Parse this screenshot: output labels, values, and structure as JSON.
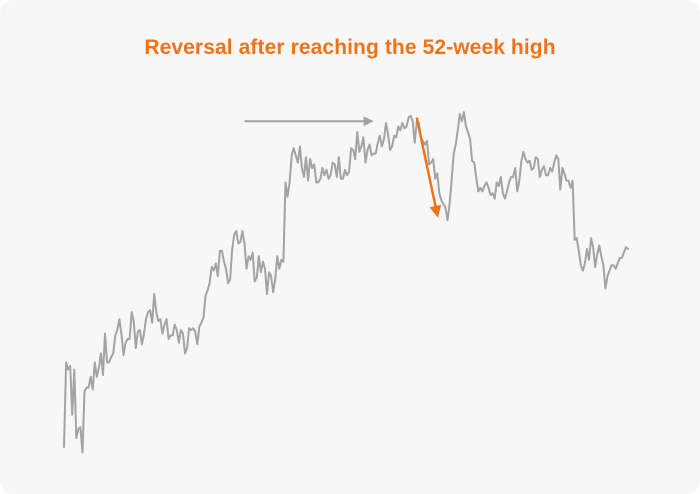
{
  "title": "Reversal after reaching the 52-week high",
  "colors": {
    "background": "#f7f7f7",
    "title": "#f07319",
    "price_line": "#a3a3a3",
    "highlight_arrow": "#f07319",
    "reference_arrow": "#a3a3a3"
  },
  "chart_data": {
    "type": "line",
    "title": "Reversal after reaching the 52-week high",
    "xlabel": "",
    "ylabel": "",
    "grid": false,
    "axes_visible": false,
    "legend": "none",
    "x": [
      0,
      1,
      2,
      3,
      4,
      5,
      6,
      7,
      8,
      9,
      10,
      11,
      12,
      13,
      14,
      15,
      16,
      17,
      18,
      19,
      20,
      21,
      22,
      23,
      24,
      25,
      26,
      27,
      28,
      29,
      30,
      31,
      32,
      33,
      34,
      35,
      36,
      37,
      38,
      39,
      40,
      41,
      42,
      43,
      44,
      45,
      46,
      47,
      48,
      49,
      50,
      51,
      52,
      53,
      54,
      55,
      56,
      57,
      58,
      59,
      60,
      61,
      62,
      63,
      64,
      65,
      66,
      67,
      68,
      69,
      70,
      71,
      72,
      73,
      74,
      75,
      76,
      77,
      78,
      79,
      80,
      81,
      82,
      83,
      84,
      85,
      86,
      87,
      88,
      89,
      90,
      91,
      92,
      93,
      94,
      95,
      96,
      97,
      98,
      99,
      100,
      101,
      102,
      103,
      104,
      105,
      106,
      107,
      108,
      109,
      110,
      111,
      112,
      113,
      114,
      115,
      116,
      117,
      118,
      119,
      120,
      121,
      122,
      123,
      124,
      125,
      126,
      127,
      128,
      129,
      130,
      131,
      132,
      133,
      134,
      135,
      136,
      137,
      138,
      139,
      140,
      141,
      142,
      143,
      144,
      145,
      146,
      147,
      148,
      149,
      150,
      151,
      152,
      153,
      154,
      155,
      156,
      157,
      158,
      159,
      160,
      161,
      162,
      163,
      164,
      165,
      166,
      167,
      168,
      169,
      170,
      171,
      172,
      173,
      174,
      175,
      176,
      177,
      178,
      179,
      180,
      181,
      182,
      183,
      184,
      185,
      186,
      187,
      188,
      189,
      190,
      191,
      192,
      193,
      194,
      195,
      196,
      197,
      198,
      199,
      200,
      201,
      202,
      203,
      204,
      205,
      206,
      207,
      208,
      209,
      210,
      211,
      212,
      213,
      214,
      215,
      216,
      217,
      218,
      219,
      220,
      221,
      222,
      223,
      224,
      225,
      226,
      227,
      228,
      229,
      230,
      231,
      232,
      233,
      234,
      235,
      236,
      237,
      238,
      239,
      240,
      241,
      242,
      243,
      244,
      245,
      246,
      247,
      248,
      249,
      250,
      251,
      252,
      253,
      254,
      255,
      256,
      257,
      258,
      259,
      260,
      261,
      262,
      263,
      264,
      265,
      266,
      267,
      268,
      269,
      270,
      271,
      272,
      273,
      274,
      275
    ],
    "y": [
      5,
      52,
      48,
      50,
      23,
      48,
      10,
      15,
      16,
      2,
      36,
      38,
      38,
      44,
      37,
      52,
      44,
      49,
      57,
      45,
      68,
      52,
      52,
      55,
      57,
      67,
      70,
      76,
      68,
      56,
      63,
      65,
      65,
      80,
      75,
      60,
      69,
      70,
      62,
      68,
      76,
      80,
      81,
      74,
      90,
      80,
      75,
      76,
      68,
      73,
      76,
      65,
      67,
      67,
      73,
      70,
      63,
      70,
      68,
      57,
      60,
      71,
      70,
      71,
      69,
      62,
      72,
      74,
      77,
      89,
      92,
      96,
      105,
      103,
      107,
      100,
      114,
      114,
      108,
      104,
      96,
      98,
      115,
      123,
      125,
      118,
      119,
      125,
      118,
      104,
      111,
      109,
      113,
      97,
      99,
      111,
      102,
      108,
      104,
      90,
      102,
      100,
      91,
      98,
      111,
      104,
      109,
      108,
      152,
      144,
      152,
      167,
      171,
      167,
      163,
      172,
      160,
      155,
      166,
      153,
      165,
      160,
      162,
      152,
      152,
      154,
      160,
      156,
      159,
      154,
      156,
      163,
      162,
      155,
      166,
      154,
      154,
      159,
      156,
      158,
      171,
      170,
      165,
      180,
      169,
      172,
      177,
      163,
      170,
      173,
      167,
      168,
      168,
      174,
      178,
      172,
      176,
      185,
      179,
      170,
      172,
      178,
      177,
      183,
      181,
      185,
      182,
      183,
      188,
      189,
      186,
      174,
      186,
      185,
      177,
      175,
      173,
      175,
      162,
      163,
      165,
      154,
      157,
      146,
      142,
      140,
      138,
      131,
      140,
      153,
      168,
      173,
      181,
      190,
      186,
      191,
      183,
      180,
      176,
      164,
      163,
      155,
      147,
      149,
      147,
      150,
      152,
      149,
      145,
      146,
      143,
      152,
      150,
      155,
      146,
      143,
      147,
      152,
      155,
      155,
      160,
      147,
      153,
      164,
      169,
      165,
      163,
      164,
      159,
      160,
      166,
      165,
      155,
      159,
      161,
      156,
      156,
      160,
      158,
      163,
      167,
      165,
      148,
      160,
      157,
      153,
      153,
      149,
      153,
      120,
      121,
      114,
      106,
      103,
      107,
      115,
      109,
      121,
      116,
      105,
      112,
      117,
      111,
      106,
      93,
      100,
      103,
      106,
      106,
      104,
      107,
      110,
      110,
      113,
      116,
      115
    ],
    "annotations": [
      {
        "type": "arrow",
        "color": "#a3a3a3",
        "from": {
          "x": 88,
          "y": 186
        },
        "to": {
          "x": 150,
          "y": 186
        }
      },
      {
        "type": "arrow",
        "color": "#f07319",
        "from": {
          "x": 172,
          "y": 188
        },
        "to": {
          "x": 182,
          "y": 134
        }
      }
    ]
  }
}
